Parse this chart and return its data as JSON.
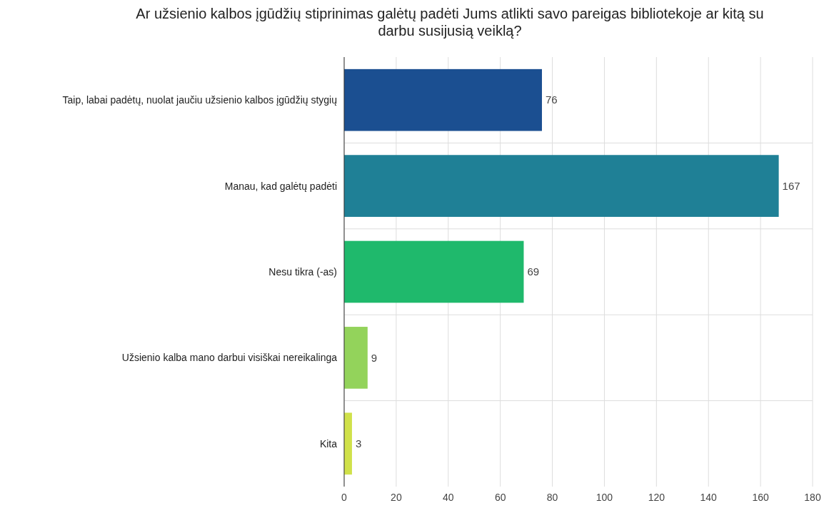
{
  "chart_data": {
    "type": "bar",
    "orientation": "horizontal",
    "title": "Ar užsienio kalbos įgūdžių stiprinimas galėtų padėti Jums atlikti savo pareigas bibliotekoje ar kitą su darbu susijusią veiklą?",
    "categories": [
      "Taip, labai padėtų, nuolat jaučiu užsienio kalbos įgūdžių stygių",
      "Manau, kad galėtų padėti",
      "Nesu tikra (-as)",
      "Užsienio kalba mano darbui visiškai nereikalinga",
      "Kita"
    ],
    "values": [
      76,
      167,
      69,
      9,
      3
    ],
    "colors": [
      "#1b4f91",
      "#1f8096",
      "#1fb96c",
      "#93d35b",
      "#d0e14a"
    ],
    "xlim": [
      0,
      180
    ],
    "xticks": [
      0,
      20,
      40,
      60,
      80,
      100,
      120,
      140,
      160,
      180
    ],
    "grid": true,
    "data_labels": true
  }
}
